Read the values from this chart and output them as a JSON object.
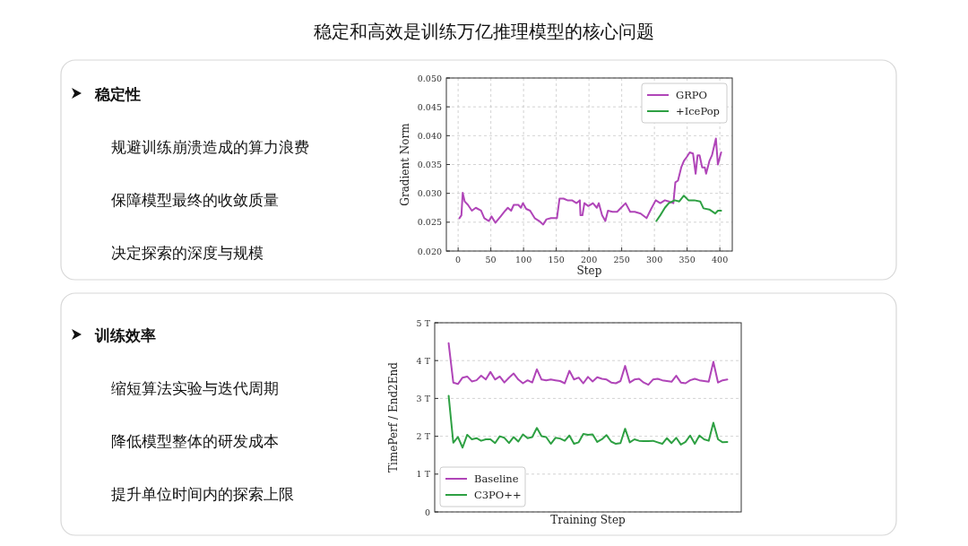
{
  "chart_data": [
    {
      "type": "other",
      "title": "稳定和高效是训练万亿推理模型的核心问题"
    },
    {
      "type": "other",
      "title": "稳定性",
      "annotations": [
        "规避训练崩溃造成的算力浪费",
        "保障模型最终的收敛质量",
        "决定探索的深度与规模"
      ]
    },
    {
      "type": "line",
      "xlabel": "Step",
      "ylabel": "Gradient Norm",
      "xlim": [
        -18,
        419
      ],
      "ylim": [
        0.02,
        0.05
      ],
      "xticks": [
        0,
        50,
        100,
        150,
        200,
        250,
        300,
        350,
        400
      ],
      "yticks": [
        {
          "value": 0.02,
          "label": "0.020"
        },
        {
          "value": 0.025,
          "label": "0.025"
        },
        {
          "value": 0.03,
          "label": "0.030"
        },
        {
          "value": 0.035,
          "label": "0.035"
        },
        {
          "value": 0.04,
          "label": "0.040"
        },
        {
          "value": 0.045,
          "label": "0.045"
        },
        {
          "value": 0.05,
          "label": "0.050"
        }
      ],
      "grid": true,
      "legend": "top right",
      "series": [
        {
          "name": "GRPO",
          "color": "#b045b8",
          "x": [
            2,
            5,
            7,
            10,
            15,
            21,
            27,
            35,
            40,
            47,
            51,
            57,
            65,
            72,
            76,
            81,
            85,
            92,
            96,
            99,
            104,
            110,
            117,
            124,
            130,
            135,
            142,
            151,
            155,
            161,
            167,
            174,
            181,
            186,
            187,
            190,
            193,
            199,
            206,
            212,
            215,
            220,
            225,
            229,
            236,
            243,
            249,
            256,
            263,
            270,
            279,
            288,
            295,
            302,
            309,
            316,
            322,
            329,
            332,
            336,
            341,
            345,
            350,
            354,
            359,
            363,
            366,
            369,
            373,
            377,
            379,
            384,
            388,
            394,
            397,
            402
          ],
          "values": [
            0.0257,
            0.0262,
            0.0301,
            0.0286,
            0.028,
            0.027,
            0.0275,
            0.027,
            0.0257,
            0.0252,
            0.026,
            0.0249,
            0.026,
            0.027,
            0.0275,
            0.027,
            0.028,
            0.028,
            0.0275,
            0.0283,
            0.0273,
            0.027,
            0.0257,
            0.0252,
            0.0246,
            0.0255,
            0.0257,
            0.0257,
            0.0291,
            0.0291,
            0.0288,
            0.0288,
            0.0283,
            0.0288,
            0.0262,
            0.0262,
            0.0283,
            0.0278,
            0.0283,
            0.0275,
            0.0283,
            0.0262,
            0.0252,
            0.027,
            0.0268,
            0.0268,
            0.0275,
            0.0283,
            0.0268,
            0.0268,
            0.0265,
            0.0257,
            0.0273,
            0.0288,
            0.0283,
            0.0288,
            0.0286,
            0.0283,
            0.0319,
            0.0322,
            0.0345,
            0.0356,
            0.0364,
            0.0371,
            0.0369,
            0.0334,
            0.0366,
            0.0366,
            0.0345,
            0.0345,
            0.0334,
            0.0356,
            0.0366,
            0.0395,
            0.035,
            0.0371
          ]
        },
        {
          "name": "+IcePop",
          "color": "#2ea043",
          "x": [
            303,
            309,
            316,
            322,
            331,
            338,
            345,
            352,
            361,
            370,
            375,
            384,
            393,
            397,
            402
          ],
          "values": [
            0.0252,
            0.0262,
            0.0275,
            0.0283,
            0.0288,
            0.0286,
            0.0296,
            0.0288,
            0.0288,
            0.0286,
            0.0274,
            0.0272,
            0.0265,
            0.027,
            0.027
          ]
        }
      ]
    },
    {
      "type": "other",
      "title": "训练效率",
      "annotations": [
        "缩短算法实验与迭代周期",
        "降低模型整体的研发成本",
        "提升单位时间内的探索上限"
      ]
    },
    {
      "type": "line",
      "xlabel": "Training Step",
      "ylabel": "TimePerf / End2End",
      "ylim": [
        0,
        5
      ],
      "yticks": [
        0,
        {
          "value": 1,
          "label": "1 T"
        },
        {
          "value": 2,
          "label": "2 T"
        },
        {
          "value": 3,
          "label": "3 T"
        },
        {
          "value": 4,
          "label": "4 T"
        },
        {
          "value": 5,
          "label": "5 T"
        }
      ],
      "grid": "y",
      "legend": "bottom left",
      "categories": [
        null,
        null,
        null,
        null,
        null,
        null,
        null,
        null,
        null,
        null,
        null,
        null,
        null,
        null,
        null,
        null,
        null,
        null,
        null,
        null,
        null,
        null,
        null,
        null,
        null,
        null,
        null,
        null,
        null,
        null,
        null,
        null,
        null,
        null,
        null,
        null,
        null,
        null,
        null,
        null,
        null,
        null,
        null,
        null,
        null,
        null,
        null,
        null,
        null,
        null,
        null,
        null,
        null,
        null,
        null,
        null,
        null,
        null,
        null,
        null,
        null
      ],
      "series": [
        {
          "name": "Baseline",
          "color": "#b045b8",
          "values": [
            4.46,
            3.42,
            3.38,
            3.55,
            3.58,
            3.45,
            3.48,
            3.6,
            3.5,
            3.7,
            3.5,
            3.58,
            3.42,
            3.55,
            3.66,
            3.5,
            3.4,
            3.48,
            3.42,
            3.77,
            3.5,
            3.48,
            3.5,
            3.48,
            3.46,
            3.4,
            3.73,
            3.5,
            3.55,
            3.4,
            3.57,
            3.45,
            3.56,
            3.52,
            3.5,
            3.42,
            3.4,
            3.46,
            3.86,
            3.42,
            3.5,
            3.52,
            3.42,
            3.36,
            3.5,
            3.52,
            3.48,
            3.46,
            3.44,
            3.6,
            3.42,
            3.4,
            3.48,
            3.52,
            3.48,
            3.46,
            3.44,
            3.97,
            3.42,
            3.48,
            3.5
          ]
        },
        {
          "name": "C3PO++",
          "color": "#2ea043",
          "values": [
            3.07,
            1.83,
            1.98,
            1.7,
            2.04,
            1.92,
            1.95,
            1.88,
            1.92,
            1.92,
            1.82,
            2.0,
            1.96,
            1.82,
            1.98,
            1.86,
            2.05,
            1.95,
            1.98,
            2.22,
            2.0,
            1.98,
            1.8,
            1.96,
            1.94,
            1.88,
            2.02,
            1.8,
            1.84,
            2.06,
            2.04,
            2.05,
            1.85,
            1.92,
            2.03,
            1.86,
            1.8,
            1.82,
            2.2,
            1.84,
            1.92,
            1.88,
            1.87,
            1.87,
            1.88,
            1.84,
            1.8,
            1.95,
            1.82,
            1.96,
            1.78,
            1.85,
            2.02,
            1.8,
            2.02,
            1.92,
            1.88,
            2.36,
            1.92,
            1.84,
            1.85
          ]
        }
      ]
    }
  ]
}
